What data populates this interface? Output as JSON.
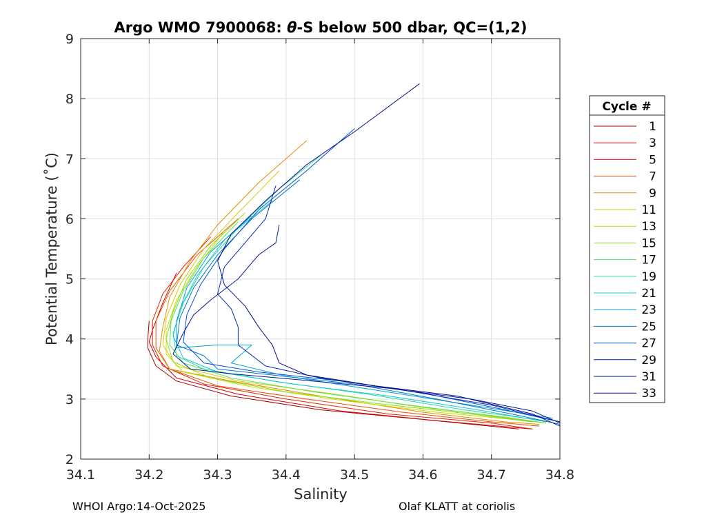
{
  "chart_data": {
    "type": "line",
    "title_prefix": "Argo WMO 7900068: ",
    "title_symbol": "θ",
    "title_suffix": "-S below 500 dbar,  QC=(1,2)",
    "xlabel": "Salinity",
    "ylabel": "Potential Temperature (˚C)",
    "xlim": [
      34.1,
      34.8
    ],
    "ylim": [
      2,
      9
    ],
    "xticks": [
      34.1,
      34.2,
      34.3,
      34.4,
      34.5,
      34.6,
      34.7,
      34.8
    ],
    "xtick_labels": [
      "34.1",
      "34.2",
      "34.3",
      "34.4",
      "34.5",
      "34.6",
      "34.7",
      "34.8"
    ],
    "yticks": [
      2,
      3,
      4,
      5,
      6,
      7,
      8,
      9
    ],
    "ytick_labels": [
      "2",
      "3",
      "4",
      "5",
      "6",
      "7",
      "8",
      "9"
    ],
    "grid": true,
    "legend": {
      "title": "Cycle #",
      "placement": "right-outside",
      "entries": [
        {
          "label": "1",
          "color": "#a80000"
        },
        {
          "label": "3",
          "color": "#d20000"
        },
        {
          "label": "5",
          "color": "#e61e00"
        },
        {
          "label": "7",
          "color": "#e65000"
        },
        {
          "label": "9",
          "color": "#e68c00"
        },
        {
          "label": "11",
          "color": "#dcc800"
        },
        {
          "label": "13",
          "color": "#c8dc00"
        },
        {
          "label": "15",
          "color": "#8cdc1e"
        },
        {
          "label": "17",
          "color": "#50e650"
        },
        {
          "label": "19",
          "color": "#28dca0"
        },
        {
          "label": "21",
          "color": "#14c8d2"
        },
        {
          "label": "23",
          "color": "#00a0d2"
        },
        {
          "label": "25",
          "color": "#0078c8"
        },
        {
          "label": "27",
          "color": "#0050dc"
        },
        {
          "label": "29",
          "color": "#0028b4"
        },
        {
          "label": "31",
          "color": "#001496"
        },
        {
          "label": "33",
          "color": "#000a8c"
        }
      ]
    },
    "series": [
      {
        "name": "1",
        "points": [
          [
            34.2,
            4.3
          ],
          [
            34.198,
            4.0
          ],
          [
            34.198,
            3.85
          ],
          [
            34.21,
            3.55
          ],
          [
            34.24,
            3.3
          ],
          [
            34.32,
            3.05
          ],
          [
            34.45,
            2.82
          ],
          [
            34.6,
            2.66
          ],
          [
            34.74,
            2.5
          ]
        ]
      },
      {
        "name": "3",
        "points": [
          [
            34.24,
            5.1
          ],
          [
            34.22,
            4.6
          ],
          [
            34.205,
            4.15
          ],
          [
            34.2,
            3.95
          ],
          [
            34.21,
            3.7
          ],
          [
            34.24,
            3.35
          ],
          [
            34.33,
            3.08
          ],
          [
            34.48,
            2.8
          ],
          [
            34.62,
            2.64
          ],
          [
            34.76,
            2.5
          ]
        ]
      },
      {
        "name": "5",
        "points": [
          [
            34.29,
            5.7
          ],
          [
            34.25,
            5.2
          ],
          [
            34.22,
            4.75
          ],
          [
            34.205,
            4.3
          ],
          [
            34.205,
            3.9
          ],
          [
            34.22,
            3.55
          ],
          [
            34.28,
            3.25
          ],
          [
            34.4,
            3.0
          ],
          [
            34.55,
            2.75
          ],
          [
            34.7,
            2.6
          ],
          [
            34.76,
            2.5
          ]
        ]
      },
      {
        "name": "7",
        "points": [
          [
            34.33,
            6.0
          ],
          [
            34.27,
            5.4
          ],
          [
            34.23,
            4.8
          ],
          [
            34.21,
            4.3
          ],
          [
            34.21,
            3.85
          ],
          [
            34.23,
            3.5
          ],
          [
            34.3,
            3.22
          ],
          [
            34.43,
            3.0
          ],
          [
            34.57,
            2.78
          ],
          [
            34.7,
            2.62
          ],
          [
            34.77,
            2.55
          ]
        ]
      },
      {
        "name": "9",
        "points": [
          [
            34.43,
            7.3
          ],
          [
            34.36,
            6.6
          ],
          [
            34.3,
            5.9
          ],
          [
            34.26,
            5.3
          ],
          [
            34.23,
            4.7
          ],
          [
            34.22,
            4.2
          ],
          [
            34.215,
            3.8
          ],
          [
            34.23,
            3.5
          ],
          [
            34.32,
            3.3
          ],
          [
            34.45,
            3.05
          ],
          [
            34.6,
            2.78
          ],
          [
            34.72,
            2.62
          ],
          [
            34.77,
            2.58
          ]
        ]
      },
      {
        "name": "11",
        "points": [
          [
            34.39,
            6.8
          ],
          [
            34.33,
            6.1
          ],
          [
            34.28,
            5.5
          ],
          [
            34.245,
            4.9
          ],
          [
            34.225,
            4.35
          ],
          [
            34.22,
            3.9
          ],
          [
            34.24,
            3.55
          ],
          [
            34.33,
            3.3
          ],
          [
            34.46,
            3.1
          ],
          [
            34.6,
            2.86
          ],
          [
            34.72,
            2.7
          ],
          [
            34.78,
            2.6
          ]
        ]
      },
      {
        "name": "13",
        "points": [
          [
            34.31,
            5.8
          ],
          [
            34.27,
            5.2
          ],
          [
            34.24,
            4.65
          ],
          [
            34.225,
            4.15
          ],
          [
            34.225,
            3.75
          ],
          [
            34.25,
            3.45
          ],
          [
            34.35,
            3.2
          ],
          [
            34.48,
            2.98
          ],
          [
            34.62,
            2.78
          ],
          [
            34.74,
            2.65
          ],
          [
            34.78,
            2.6
          ]
        ]
      },
      {
        "name": "15",
        "points": [
          [
            34.34,
            6.1
          ],
          [
            34.29,
            5.55
          ],
          [
            34.255,
            5.0
          ],
          [
            34.235,
            4.45
          ],
          [
            34.225,
            4.0
          ],
          [
            34.235,
            3.62
          ],
          [
            34.29,
            3.35
          ],
          [
            34.4,
            3.12
          ],
          [
            34.53,
            2.93
          ],
          [
            34.67,
            2.75
          ],
          [
            34.76,
            2.62
          ]
        ]
      },
      {
        "name": "17",
        "points": [
          [
            34.33,
            5.95
          ],
          [
            34.28,
            5.35
          ],
          [
            34.25,
            4.8
          ],
          [
            34.232,
            4.3
          ],
          [
            34.23,
            3.9
          ],
          [
            34.25,
            3.6
          ],
          [
            34.32,
            3.35
          ],
          [
            34.44,
            3.12
          ],
          [
            34.58,
            2.9
          ],
          [
            34.7,
            2.72
          ],
          [
            34.78,
            2.6
          ]
        ]
      },
      {
        "name": "19",
        "points": [
          [
            34.45,
            7.05
          ],
          [
            34.39,
            6.5
          ],
          [
            34.33,
            5.85
          ],
          [
            34.28,
            5.2
          ],
          [
            34.25,
            4.6
          ],
          [
            34.235,
            4.1
          ],
          [
            34.24,
            3.72
          ],
          [
            34.28,
            3.5
          ],
          [
            34.38,
            3.3
          ],
          [
            34.52,
            3.08
          ],
          [
            34.66,
            2.82
          ],
          [
            34.77,
            2.65
          ]
        ]
      },
      {
        "name": "21",
        "points": [
          [
            34.38,
            6.3
          ],
          [
            34.31,
            5.65
          ],
          [
            34.27,
            5.05
          ],
          [
            34.245,
            4.5
          ],
          [
            34.235,
            4.05
          ],
          [
            34.25,
            3.68
          ],
          [
            34.3,
            3.45
          ],
          [
            34.41,
            3.25
          ],
          [
            34.55,
            3.05
          ],
          [
            34.68,
            2.82
          ],
          [
            34.78,
            2.62
          ]
        ]
      },
      {
        "name": "23",
        "points": [
          [
            34.35,
            6.05
          ],
          [
            34.29,
            5.45
          ],
          [
            34.255,
            4.85
          ],
          [
            34.24,
            4.3
          ],
          [
            34.24,
            3.85
          ],
          [
            34.3,
            3.9
          ],
          [
            34.35,
            3.9
          ],
          [
            34.32,
            3.6
          ],
          [
            34.4,
            3.38
          ],
          [
            34.53,
            3.15
          ],
          [
            34.67,
            2.9
          ],
          [
            34.79,
            2.68
          ]
        ]
      },
      {
        "name": "25",
        "points": [
          [
            34.42,
            6.65
          ],
          [
            34.35,
            6.0
          ],
          [
            34.3,
            5.4
          ],
          [
            34.265,
            4.85
          ],
          [
            34.245,
            4.35
          ],
          [
            34.24,
            3.9
          ],
          [
            34.28,
            3.72
          ],
          [
            34.3,
            3.5
          ],
          [
            34.38,
            3.4
          ],
          [
            34.5,
            3.25
          ],
          [
            34.62,
            3.0
          ],
          [
            34.73,
            2.75
          ],
          [
            34.8,
            2.58
          ]
        ]
      },
      {
        "name": "27",
        "points": [
          [
            34.5,
            7.5
          ],
          [
            34.43,
            6.8
          ],
          [
            34.36,
            6.15
          ],
          [
            34.31,
            5.5
          ],
          [
            34.275,
            4.9
          ],
          [
            34.255,
            4.4
          ],
          [
            34.25,
            3.95
          ],
          [
            34.28,
            3.6
          ],
          [
            34.36,
            3.45
          ],
          [
            34.48,
            3.3
          ],
          [
            34.6,
            3.1
          ],
          [
            34.72,
            2.82
          ],
          [
            34.8,
            2.62
          ]
        ]
      },
      {
        "name": "29",
        "points": [
          [
            34.385,
            6.55
          ],
          [
            34.37,
            6.0
          ],
          [
            34.34,
            5.6
          ],
          [
            34.31,
            5.2
          ],
          [
            34.3,
            4.75
          ],
          [
            34.32,
            4.5
          ],
          [
            34.33,
            4.2
          ],
          [
            34.33,
            3.9
          ],
          [
            34.37,
            3.55
          ],
          [
            34.45,
            3.35
          ],
          [
            34.57,
            3.15
          ],
          [
            34.7,
            2.9
          ],
          [
            34.8,
            2.62
          ]
        ]
      },
      {
        "name": "31",
        "points": [
          [
            34.39,
            5.9
          ],
          [
            34.385,
            5.6
          ],
          [
            34.36,
            5.4
          ],
          [
            34.33,
            5.0
          ],
          [
            34.29,
            4.65
          ],
          [
            34.265,
            4.4
          ],
          [
            34.25,
            4.1
          ],
          [
            34.235,
            3.75
          ],
          [
            34.26,
            3.5
          ],
          [
            34.32,
            3.42
          ],
          [
            34.42,
            3.32
          ],
          [
            34.55,
            3.18
          ],
          [
            34.67,
            3.0
          ],
          [
            34.76,
            2.8
          ],
          [
            34.8,
            2.6
          ]
        ]
      },
      {
        "name": "33",
        "points": [
          [
            34.595,
            8.25
          ],
          [
            34.5,
            7.45
          ],
          [
            34.43,
            6.9
          ],
          [
            34.37,
            6.3
          ],
          [
            34.32,
            5.75
          ],
          [
            34.3,
            5.3
          ],
          [
            34.31,
            4.9
          ],
          [
            34.34,
            4.55
          ],
          [
            34.36,
            4.2
          ],
          [
            34.38,
            3.9
          ],
          [
            34.39,
            3.6
          ],
          [
            34.43,
            3.4
          ],
          [
            34.53,
            3.22
          ],
          [
            34.65,
            3.05
          ],
          [
            34.76,
            2.75
          ],
          [
            34.8,
            2.55
          ]
        ]
      }
    ]
  },
  "footer": {
    "left": "WHOI Argo:14-Oct-2025",
    "right": "Olaf KLATT at coriolis"
  }
}
